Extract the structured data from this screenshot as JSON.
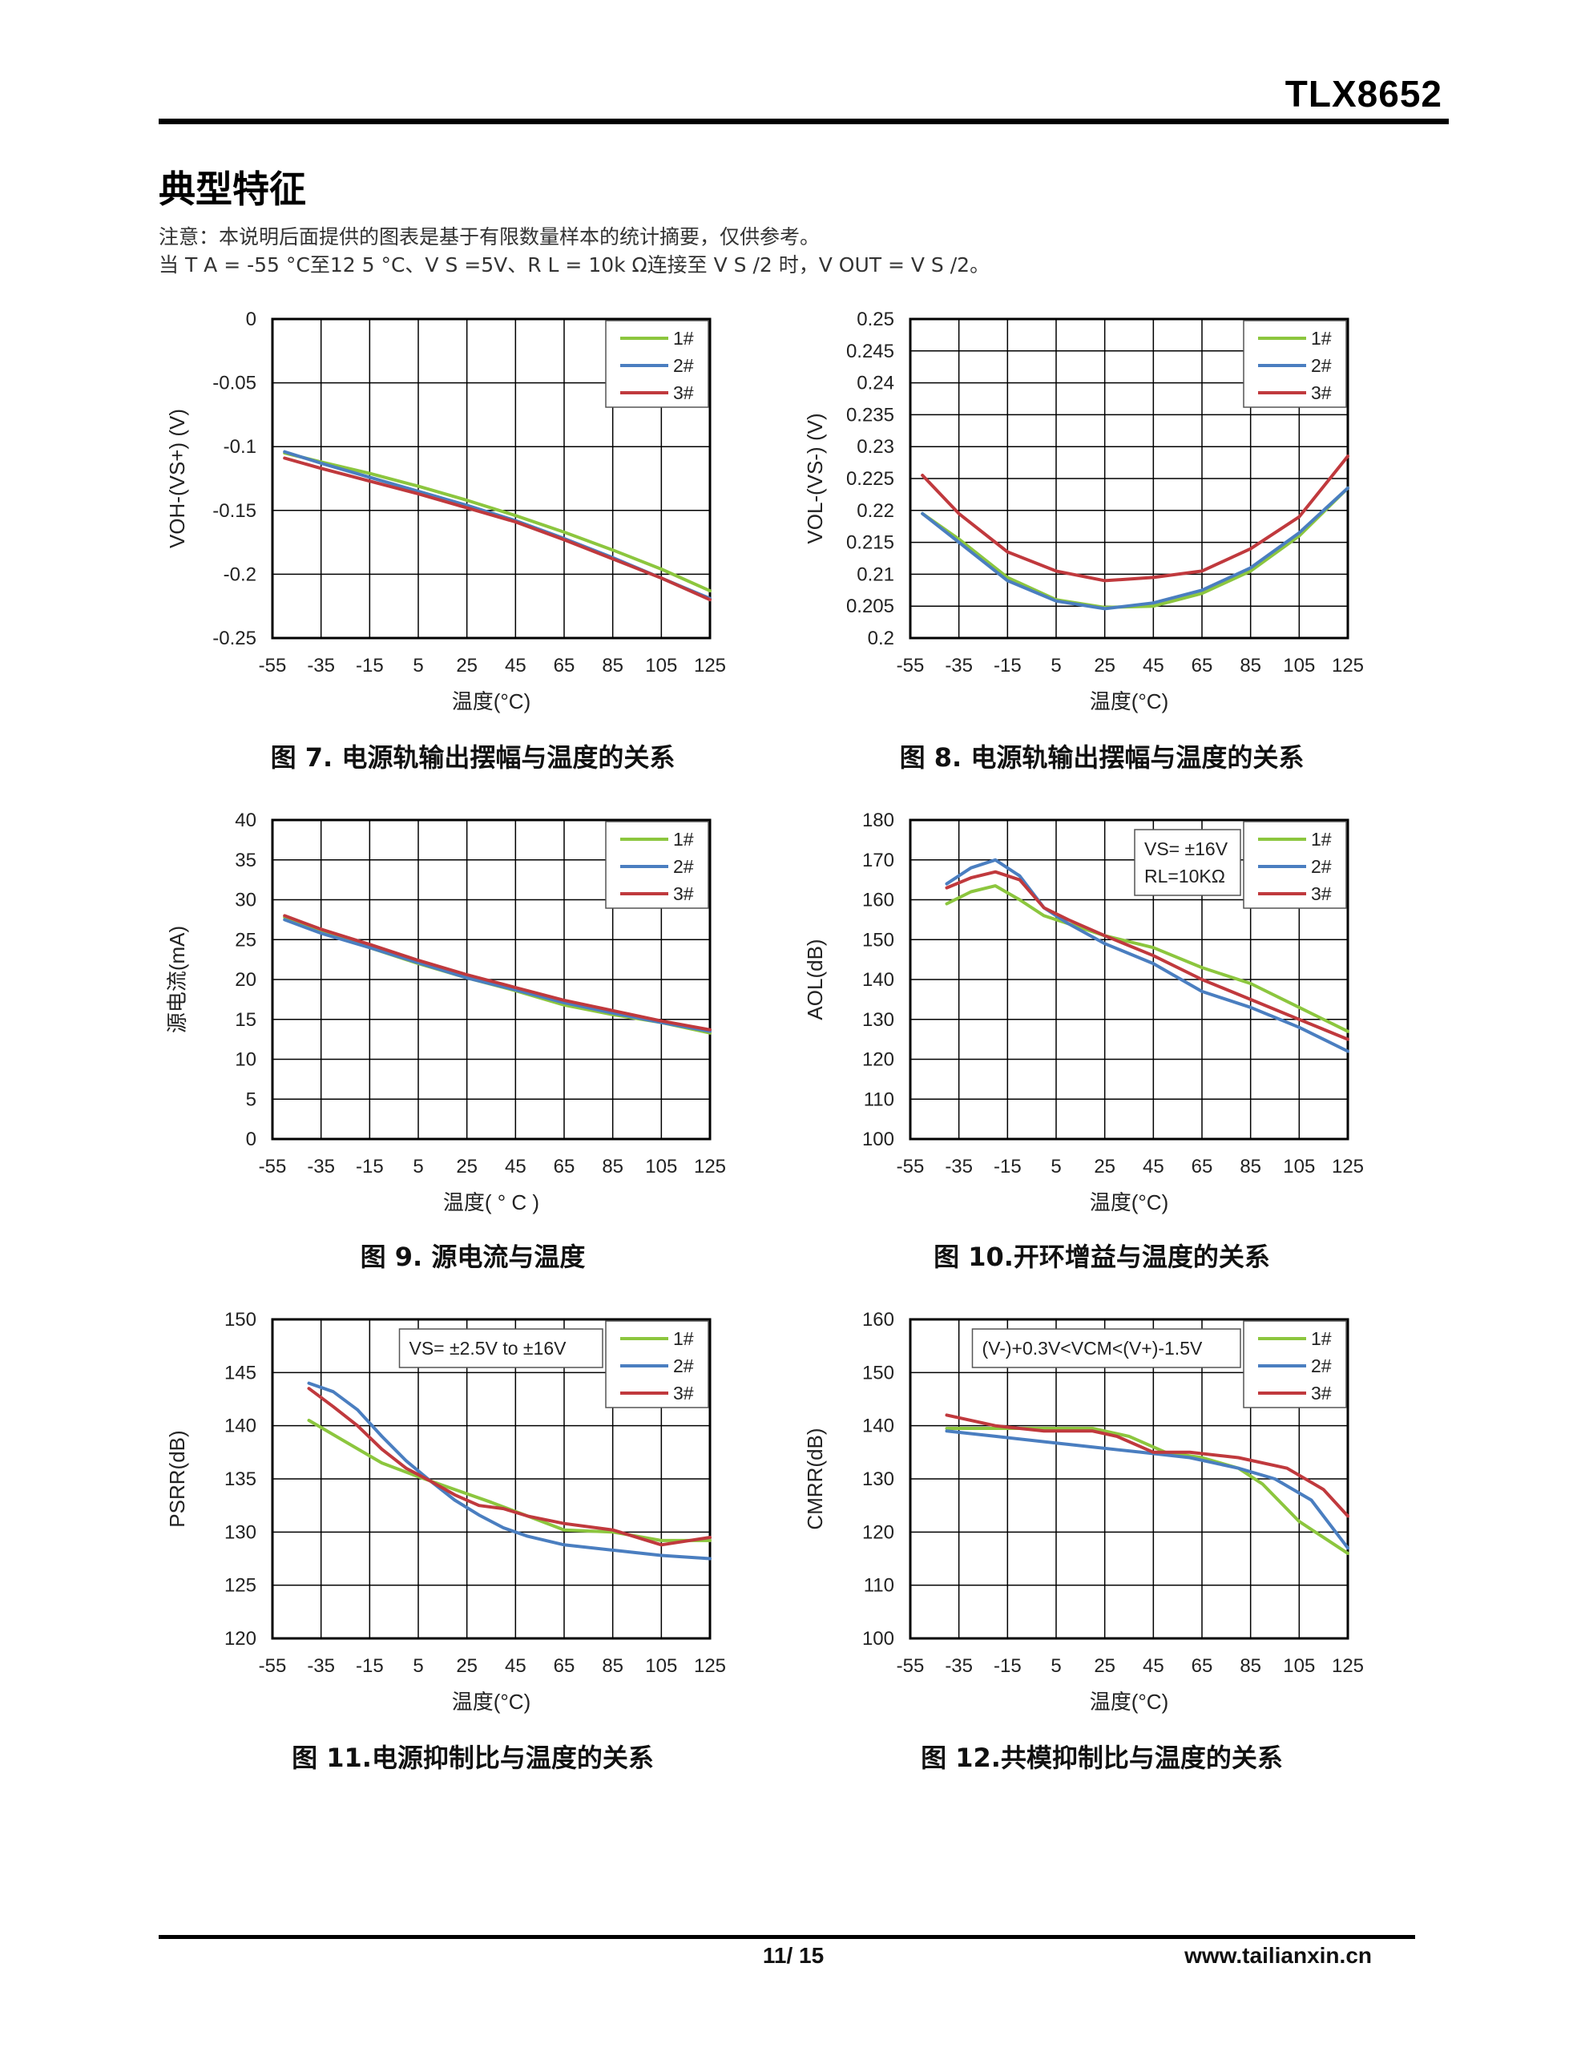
{
  "header": {
    "part_number": "TLX8652"
  },
  "section": {
    "title": "典型特征",
    "note_line1": "注意：本说明后面提供的图表是基于有限数量样本的统计摘要，仅供参考。",
    "note_line2": "当 T A = -55 °C至12 5 °C、V S =5V、R L = 10k Ω连接至 V S /2 时，V OUT = V S /2。"
  },
  "colors": {
    "s1": "#8CC63E",
    "s2": "#4A7EC0",
    "s3": "#C0393D",
    "grid": "#000000"
  },
  "chart_data": [
    {
      "id": "fig7",
      "type": "line",
      "caption": "图 7. 电源轨输出摆幅与温度的关系",
      "xlabel": "温度(°C)",
      "ylabel": "VOH-(VS+) (V)",
      "xlim": [
        -55,
        125
      ],
      "ylim": [
        -0.25,
        0
      ],
      "xticks": [
        -55,
        -35,
        -15,
        5,
        25,
        45,
        65,
        85,
        105,
        125
      ],
      "xtick_labels": [
        "-55",
        "-35",
        "-15",
        "5",
        "25",
        "45",
        "65",
        "85",
        "105",
        "125"
      ],
      "yticks": [
        0,
        -0.05,
        -0.1,
        -0.15,
        -0.2,
        -0.25
      ],
      "ytick_labels": [
        "0",
        "-0.05",
        "-0.1",
        "-0.15",
        "-0.2",
        "-0.25"
      ],
      "legend": [
        "1#",
        "2#",
        "3#"
      ],
      "annotation": "",
      "series": [
        {
          "name": "1#",
          "x": [
            -50,
            -35,
            -15,
            5,
            25,
            45,
            65,
            85,
            105,
            125
          ],
          "y": [
            -0.105,
            -0.112,
            -0.121,
            -0.131,
            -0.142,
            -0.154,
            -0.167,
            -0.181,
            -0.196,
            -0.213
          ]
        },
        {
          "name": "2#",
          "x": [
            -50,
            -35,
            -15,
            5,
            25,
            45,
            65,
            85,
            105,
            125
          ],
          "y": [
            -0.104,
            -0.113,
            -0.124,
            -0.135,
            -0.146,
            -0.158,
            -0.172,
            -0.187,
            -0.203,
            -0.219
          ]
        },
        {
          "name": "3#",
          "x": [
            -50,
            -35,
            -15,
            5,
            25,
            45,
            65,
            85,
            105,
            125
          ],
          "y": [
            -0.109,
            -0.117,
            -0.127,
            -0.137,
            -0.148,
            -0.159,
            -0.173,
            -0.188,
            -0.203,
            -0.22
          ]
        }
      ]
    },
    {
      "id": "fig8",
      "type": "line",
      "caption": "图 8. 电源轨输出摆幅与温度的关系",
      "xlabel": "温度(°C)",
      "ylabel": "VOL-(VS-) (V)",
      "xlim": [
        -55,
        125
      ],
      "ylim": [
        0.2,
        0.25
      ],
      "xticks": [
        -55,
        -35,
        -15,
        5,
        25,
        45,
        65,
        85,
        105,
        125
      ],
      "xtick_labels": [
        "-55",
        "-35",
        "-15",
        "5",
        "25",
        "45",
        "65",
        "85",
        "105",
        "125"
      ],
      "yticks": [
        0.25,
        0.245,
        0.24,
        0.235,
        0.23,
        0.225,
        0.22,
        0.215,
        0.21,
        0.205,
        0.2
      ],
      "ytick_labels": [
        "0.25",
        "0.245",
        "0.24",
        "0.235",
        "0.23",
        "0.225",
        "0.22",
        "0.215",
        "0.21",
        "0.205",
        "0.2"
      ],
      "legend": [
        "1#",
        "2#",
        "3#"
      ],
      "annotation": "",
      "series": [
        {
          "name": "1#",
          "x": [
            -50,
            -35,
            -15,
            5,
            25,
            45,
            65,
            85,
            105,
            125
          ],
          "y": [
            0.2195,
            0.2155,
            0.2095,
            0.206,
            0.2048,
            0.205,
            0.207,
            0.2105,
            0.216,
            0.2235
          ]
        },
        {
          "name": "2#",
          "x": [
            -50,
            -35,
            -15,
            5,
            25,
            45,
            65,
            85,
            105,
            125
          ],
          "y": [
            0.2195,
            0.215,
            0.209,
            0.2058,
            0.2046,
            0.2055,
            0.2075,
            0.211,
            0.2165,
            0.2235
          ]
        },
        {
          "name": "3#",
          "x": [
            -50,
            -35,
            -15,
            5,
            25,
            45,
            65,
            85,
            105,
            125
          ],
          "y": [
            0.2255,
            0.2195,
            0.2135,
            0.2105,
            0.209,
            0.2095,
            0.2105,
            0.214,
            0.219,
            0.2285
          ]
        }
      ]
    },
    {
      "id": "fig9",
      "type": "line",
      "caption": "图 9. 源电流与温度",
      "xlabel": "温度( ° C )",
      "ylabel": "源电流(mA)",
      "xlim": [
        -55,
        125
      ],
      "ylim": [
        0,
        40
      ],
      "xticks": [
        -55,
        -35,
        -15,
        5,
        25,
        45,
        65,
        85,
        105,
        125
      ],
      "xtick_labels": [
        "-55",
        "-35",
        "-15",
        "5",
        "25",
        "45",
        "65",
        "85",
        "105",
        "125"
      ],
      "yticks": [
        40,
        35,
        30,
        25,
        20,
        15,
        10,
        5,
        0
      ],
      "ytick_labels": [
        "40",
        "35",
        "30",
        "25",
        "20",
        "15",
        "10",
        "5",
        "0"
      ],
      "legend": [
        "1#",
        "2#",
        "3#"
      ],
      "annotation": "",
      "series": [
        {
          "name": "1#",
          "x": [
            -50,
            -35,
            -15,
            5,
            25,
            45,
            65,
            85,
            105,
            125
          ],
          "y": [
            27.8,
            26.0,
            24.0,
            22.0,
            20.2,
            18.6,
            16.8,
            15.6,
            14.6,
            13.3
          ]
        },
        {
          "name": "2#",
          "x": [
            -50,
            -35,
            -15,
            5,
            25,
            45,
            65,
            85,
            105,
            125
          ],
          "y": [
            27.5,
            25.8,
            24.0,
            22.1,
            20.2,
            18.7,
            17.1,
            15.8,
            14.6,
            13.5
          ]
        },
        {
          "name": "3#",
          "x": [
            -50,
            -35,
            -15,
            5,
            25,
            45,
            65,
            85,
            105,
            125
          ],
          "y": [
            28.0,
            26.3,
            24.4,
            22.4,
            20.6,
            19.0,
            17.4,
            16.1,
            14.8,
            13.7
          ]
        }
      ]
    },
    {
      "id": "fig10",
      "type": "line",
      "caption": "图 10.开环增益与温度的关系",
      "xlabel": "温度(°C)",
      "ylabel": "AOL(dB)",
      "xlim": [
        -55,
        125
      ],
      "ylim": [
        100,
        180
      ],
      "xticks": [
        -55,
        -35,
        -15,
        5,
        25,
        45,
        65,
        85,
        105,
        125
      ],
      "xtick_labels": [
        "-55",
        "-35",
        "-15",
        "5",
        "25",
        "45",
        "65",
        "85",
        "105",
        "125"
      ],
      "yticks": [
        180,
        170,
        160,
        150,
        140,
        130,
        120,
        110,
        100
      ],
      "ytick_labels": [
        "180",
        "170",
        "160",
        "150",
        "140",
        "130",
        "120",
        "110",
        "100"
      ],
      "legend": [
        "1#",
        "2#",
        "3#"
      ],
      "annotation": "VS= ±16V / RL=10KΩ",
      "annotation_lines": [
        "VS= ±16V",
        "RL=10KΩ"
      ],
      "series": [
        {
          "name": "1#",
          "x": [
            -40,
            -30,
            -20,
            -10,
            0,
            10,
            25,
            45,
            65,
            85,
            105,
            125
          ],
          "y": [
            159,
            162,
            163.5,
            160,
            156,
            154,
            151,
            148,
            143,
            139,
            133,
            127
          ]
        },
        {
          "name": "2#",
          "x": [
            -40,
            -30,
            -20,
            -10,
            0,
            10,
            25,
            45,
            65,
            85,
            105,
            125
          ],
          "y": [
            164,
            168,
            170,
            166,
            158,
            154,
            149,
            144,
            137,
            133,
            128,
            122
          ]
        },
        {
          "name": "3#",
          "x": [
            -40,
            -30,
            -20,
            -10,
            0,
            10,
            25,
            45,
            65,
            85,
            105,
            125
          ],
          "y": [
            163,
            165.5,
            167,
            165,
            158,
            155,
            151,
            146,
            140,
            135,
            130,
            125
          ]
        }
      ]
    },
    {
      "id": "fig11",
      "type": "line",
      "caption": "图 11.电源抑制比与温度的关系",
      "xlabel": "温度(°C)",
      "ylabel": "PSRR(dB)",
      "xlim": [
        -55,
        125
      ],
      "ylim": [
        120,
        150
      ],
      "xticks": [
        -55,
        -35,
        -15,
        5,
        25,
        45,
        65,
        85,
        105,
        125
      ],
      "xtick_labels": [
        "-55",
        "-35",
        "-15",
        "5",
        "25",
        "45",
        "65",
        "85",
        "105",
        "125"
      ],
      "yticks": [
        150,
        145,
        140,
        135,
        130,
        125,
        120
      ],
      "ytick_labels": [
        "150",
        "145",
        "140",
        "135",
        "130",
        "125",
        "120"
      ],
      "legend": [
        "1#",
        "2#",
        "3#"
      ],
      "annotation": "VS= ±2.5V to ±16V",
      "annotation_lines": [
        "VS= ±2.5V to ±16V"
      ],
      "series": [
        {
          "name": "1#",
          "x": [
            -40,
            -25,
            -10,
            5,
            20,
            35,
            50,
            65,
            85,
            105,
            125
          ],
          "y": [
            140.5,
            138.5,
            136.5,
            135.2,
            134,
            132.8,
            131.5,
            130.2,
            130,
            129.2,
            129.2
          ]
        },
        {
          "name": "2#",
          "x": [
            -40,
            -30,
            -20,
            -10,
            0,
            10,
            20,
            30,
            40,
            50,
            65,
            85,
            105,
            125
          ],
          "y": [
            144,
            143.2,
            141.5,
            139,
            136.7,
            134.8,
            133,
            131.6,
            130.4,
            129.6,
            128.8,
            128.3,
            127.8,
            127.5
          ]
        },
        {
          "name": "3#",
          "x": [
            -40,
            -30,
            -20,
            -10,
            0,
            10,
            20,
            30,
            40,
            50,
            65,
            85,
            105,
            125
          ],
          "y": [
            143.5,
            141.8,
            140,
            137.8,
            136,
            134.8,
            133.5,
            132.5,
            132.2,
            131.5,
            130.8,
            130.2,
            128.8,
            129.5
          ]
        }
      ]
    },
    {
      "id": "fig12",
      "type": "line",
      "caption": "图 12.共模抑制比与温度的关系",
      "xlabel": "温度(°C)",
      "ylabel": "CMRR(dB)",
      "xlim": [
        -55,
        125
      ],
      "ylim": [
        100,
        160
      ],
      "xticks": [
        -55,
        -35,
        -15,
        5,
        25,
        45,
        65,
        85,
        105,
        125
      ],
      "xtick_labels": [
        "-55",
        "-35",
        "-15",
        "5",
        "25",
        "45",
        "65",
        "85",
        "105",
        "125"
      ],
      "yticks": [
        160,
        150,
        140,
        130,
        120,
        110,
        100
      ],
      "ytick_labels": [
        "160",
        "150",
        "140",
        "130",
        "120",
        "110",
        "100"
      ],
      "legend": [
        "1#",
        "2#",
        "3#"
      ],
      "annotation": "(V-)+0.3V<VCM<(V+)-1.5V",
      "annotation_lines": [
        "(V-)+0.3V<VCM<(V+)-1.5V"
      ],
      "series": [
        {
          "name": "1#",
          "x": [
            -40,
            -20,
            0,
            20,
            35,
            50,
            65,
            80,
            90,
            105,
            125
          ],
          "y": [
            139.5,
            139.5,
            139.5,
            139.5,
            138,
            135,
            134,
            132,
            129,
            122,
            116
          ]
        },
        {
          "name": "2#",
          "x": [
            -40,
            -20,
            0,
            20,
            40,
            60,
            80,
            95,
            110,
            125
          ],
          "y": [
            139,
            138,
            137,
            136,
            135,
            134,
            132,
            130,
            126,
            117
          ]
        },
        {
          "name": "3#",
          "x": [
            -40,
            -20,
            0,
            20,
            30,
            45,
            60,
            80,
            100,
            115,
            125
          ],
          "y": [
            142,
            140,
            139,
            139,
            138,
            135,
            135,
            134,
            132,
            128,
            123
          ]
        }
      ]
    }
  ],
  "footer": {
    "page": "11/ 15",
    "site": "www.tailianxin.cn"
  }
}
